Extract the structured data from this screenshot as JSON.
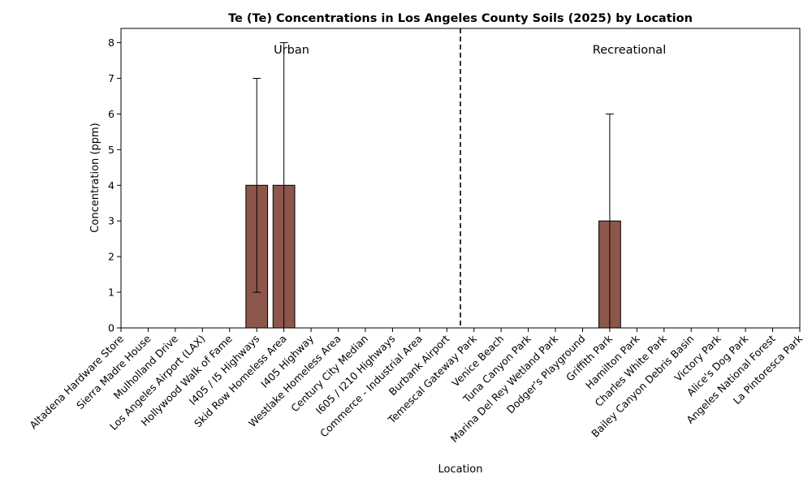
{
  "chart_data": {
    "type": "bar",
    "title": "Te (Te) Concentrations in Los Angeles County Soils (2025) by Location",
    "xlabel": "Location",
    "ylabel": "Concentration (ppm)",
    "ylim": [
      0,
      8.4
    ],
    "yticks": [
      0,
      1,
      2,
      3,
      4,
      5,
      6,
      7,
      8
    ],
    "grid": false,
    "bar_color": "#8c564b",
    "categories": [
      "Altadena Hardware Store",
      "Sierra Madre House",
      "Mulholland Drive",
      "Los Angeles Airport (LAX)",
      "Hollywood Walk of Fame",
      "I405 / I5 Highways",
      "Skid Row Homeless Area",
      "I405 Highway",
      "Westlake Homeless Area",
      "Century City Median",
      "I605 / I210 Highways",
      "Commerce - Industrial Area",
      "Burbank Airport",
      "Temescal Gateway Park",
      "Venice Beach",
      "Tuna Canyon Park",
      "Marina Del Rey Wetland Park",
      "Dodger's Playground",
      "Griffith Park",
      "Hamilton Park",
      "Charles White Park",
      "Bailey Canyon Debris Basin",
      "Victory Park",
      "Alice's Dog Park",
      "Angeles National Forest",
      "La Pintoresca Park"
    ],
    "values": [
      0,
      0,
      0,
      0,
      0,
      4,
      4,
      0,
      0,
      0,
      0,
      0,
      0,
      0,
      0,
      0,
      0,
      0,
      3,
      0,
      0,
      0,
      0,
      0,
      0,
      0
    ],
    "errors": [
      0,
      0,
      0,
      0,
      0,
      3,
      4,
      0,
      0,
      0,
      0,
      0,
      0,
      0,
      0,
      0,
      0,
      0,
      3,
      0,
      0,
      0,
      0,
      0,
      0,
      0
    ],
    "divider_after_index": 12,
    "groups": [
      {
        "label": "Urban"
      },
      {
        "label": "Recreational"
      }
    ]
  }
}
